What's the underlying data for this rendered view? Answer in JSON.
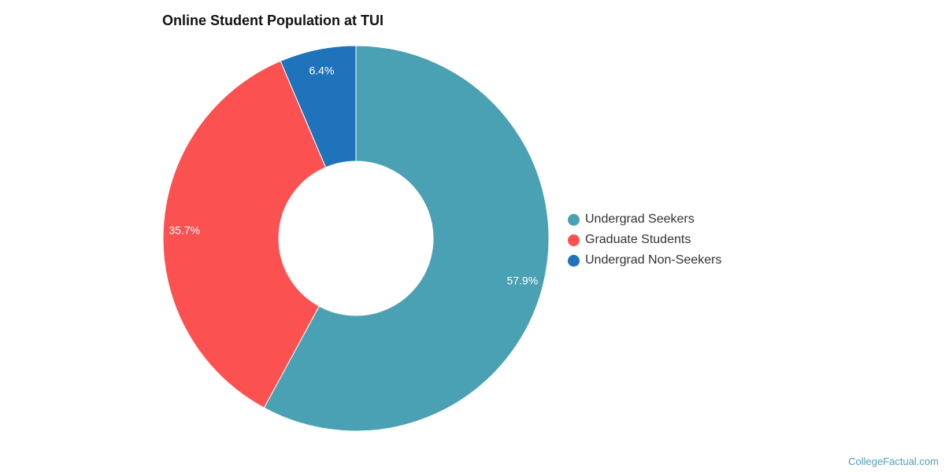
{
  "header": {
    "title": "Online Student Population at TUI"
  },
  "chart_data": {
    "type": "pie",
    "donut": true,
    "title": "Online Student Population at TUI",
    "legend_position": "right",
    "slices": [
      {
        "name": "Undergrad Seekers",
        "value": 57.9,
        "label": "57.9%",
        "color": "#4aa1b3"
      },
      {
        "name": "Graduate Students",
        "value": 35.7,
        "label": "35.7%",
        "color": "#fc5151"
      },
      {
        "name": "Undergrad Non-Seekers",
        "value": 6.4,
        "label": "6.4%",
        "color": "#1e73bb"
      }
    ]
  },
  "watermark": "CollegeFactual.com"
}
